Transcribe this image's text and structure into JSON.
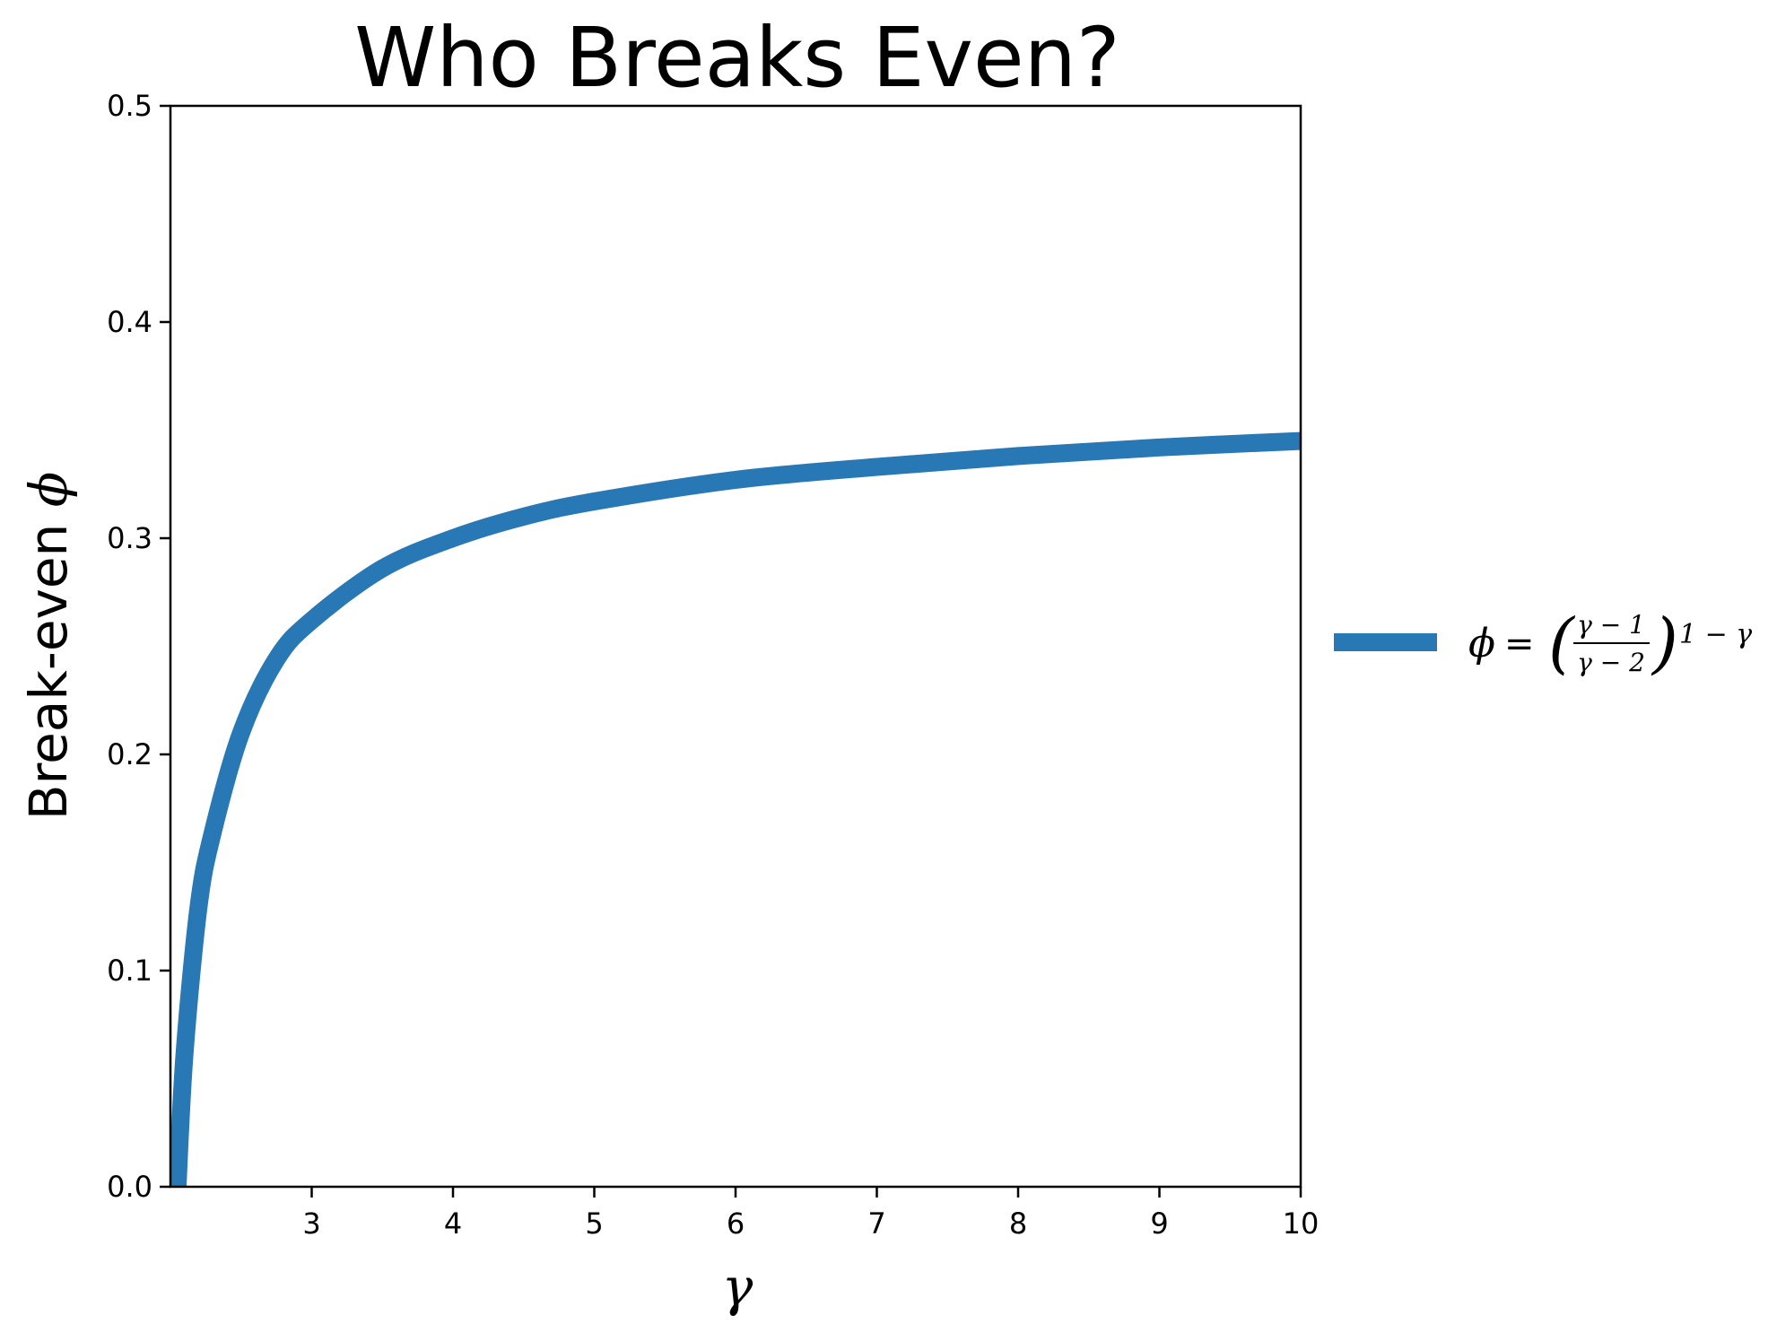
{
  "chart_data": {
    "type": "line",
    "title": "Who Breaks Even?",
    "xlabel": "γ",
    "ylabel_text": "Break-even ",
    "ylabel_symbol": "ϕ",
    "xlim": [
      2,
      10
    ],
    "ylim": [
      0,
      0.5
    ],
    "xticks": [
      3,
      4,
      5,
      6,
      7,
      8,
      9,
      10
    ],
    "xtick_labels": [
      "3",
      "4",
      "5",
      "6",
      "7",
      "8",
      "9",
      "10"
    ],
    "yticks": [
      0.0,
      0.1,
      0.2,
      0.3,
      0.4,
      0.5
    ],
    "ytick_labels": [
      "0.0",
      "0.1",
      "0.2",
      "0.3",
      "0.4",
      "0.5"
    ],
    "grid": false,
    "legend_placement": "outside-right",
    "series": [
      {
        "name": "ϕ = ((γ − 1)/(γ − 2))^(1 − γ)",
        "color": "#2878b5",
        "x": [
          2.05,
          2.1,
          2.2,
          2.3,
          2.5,
          2.75,
          3.0,
          3.5,
          4.0,
          4.5,
          5.0,
          6.0,
          7.0,
          8.0,
          9.0,
          10.0
        ],
        "y": [
          0.0,
          0.062,
          0.13,
          0.164,
          0.21,
          0.244,
          0.262,
          0.286,
          0.3,
          0.31,
          0.317,
          0.327,
          0.333,
          0.338,
          0.342,
          0.345
        ]
      }
    ],
    "legend": {
      "symbol": "ϕ",
      "equals": "=",
      "frac_num": "γ − 1",
      "frac_den": "γ − 2",
      "exponent": "1 − γ"
    }
  }
}
